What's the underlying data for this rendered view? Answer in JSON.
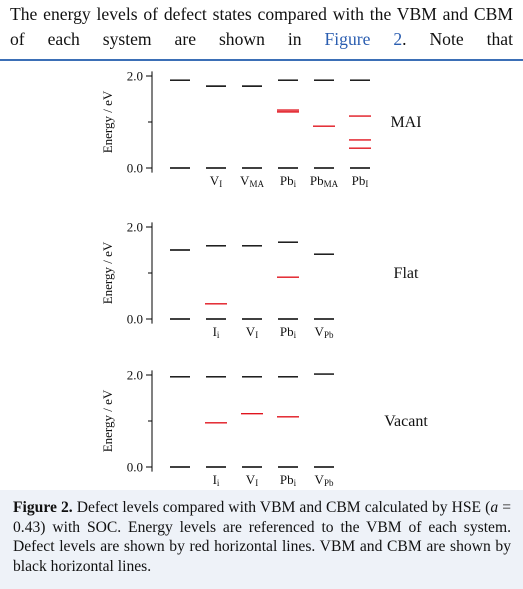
{
  "body_text": {
    "parts": [
      "The energy levels of defect states compared with the VBM and CBM of each system are shown in",
      "Figure 2",
      ". Note that"
    ]
  },
  "chart_data": [
    {
      "type": "level",
      "title": "MAI",
      "ylabel": "Energy / eV",
      "ylim": [
        -0.1,
        2.1
      ],
      "yticks": [
        {
          "value": 0,
          "label": "0.0"
        },
        {
          "value": 2,
          "label": "2.0"
        }
      ],
      "minor_yticks": [
        1
      ],
      "categories": [
        null,
        {
          "base": "V",
          "sub": "I"
        },
        {
          "base": "V",
          "sub": "MA"
        },
        {
          "base": "Pb",
          "sub": "i"
        },
        {
          "base": "Pb",
          "sub": "MA"
        },
        {
          "base": "Pb",
          "sub": "I"
        }
      ],
      "series": [
        {
          "color": "#000000",
          "values": [
            0,
            0,
            0,
            0,
            0,
            0
          ]
        },
        {
          "color": "#000000",
          "values": [
            1.91,
            1.78,
            1.78,
            1.91,
            1.91,
            1.91
          ]
        },
        {
          "color": "#e0141e",
          "values": [
            [],
            [],
            [],
            [
              1.26,
              1.22
            ],
            [
              0.91
            ],
            [
              1.13,
              0.61,
              0.43
            ]
          ]
        }
      ]
    },
    {
      "type": "level",
      "title": "Flat",
      "ylabel": "Energy / eV",
      "ylim": [
        -0.1,
        2.1
      ],
      "yticks": [
        {
          "value": 0,
          "label": "0.0"
        },
        {
          "value": 2,
          "label": "2.0"
        }
      ],
      "minor_yticks": [
        1
      ],
      "categories": [
        null,
        {
          "base": "I",
          "sub": "i"
        },
        {
          "base": "V",
          "sub": "I"
        },
        {
          "base": "Pb",
          "sub": "i"
        },
        {
          "base": "V",
          "sub": "Pb"
        }
      ],
      "series": [
        {
          "color": "#000000",
          "values": [
            0,
            0,
            0,
            0,
            0
          ]
        },
        {
          "color": "#000000",
          "values": [
            1.5,
            1.59,
            1.59,
            1.67,
            1.41
          ]
        },
        {
          "color": "#e0141e",
          "values": [
            [],
            [
              0.33
            ],
            [],
            [
              0.91
            ],
            []
          ]
        }
      ]
    },
    {
      "type": "level",
      "title": "Vacant",
      "ylabel": "Energy / eV",
      "ylim": [
        -0.1,
        2.1
      ],
      "yticks": [
        {
          "value": 0,
          "label": "0.0"
        },
        {
          "value": 2,
          "label": "2.0"
        }
      ],
      "minor_yticks": [
        1
      ],
      "categories": [
        null,
        {
          "base": "I",
          "sub": "i"
        },
        {
          "base": "V",
          "sub": "I"
        },
        {
          "base": "Pb",
          "sub": "i"
        },
        {
          "base": "V",
          "sub": "Pb"
        }
      ],
      "series": [
        {
          "color": "#000000",
          "values": [
            0,
            0,
            0,
            0,
            0
          ]
        },
        {
          "color": "#000000",
          "values": [
            1.96,
            1.96,
            1.96,
            1.96,
            2.02
          ]
        },
        {
          "color": "#e0141e",
          "values": [
            [],
            [
              0.96
            ],
            [
              1.16
            ],
            [
              1.09
            ],
            []
          ]
        }
      ]
    }
  ],
  "caption": {
    "label": "Figure 2.",
    "parts": [
      "Defect levels compared with VBM and CBM calculated by HSE (",
      "a",
      " = 0.43) with SOC. Energy levels are referenced to the VBM of each system. Defect levels are shown by red horizontal lines. VBM and CBM are shown by black horizontal lines."
    ]
  }
}
